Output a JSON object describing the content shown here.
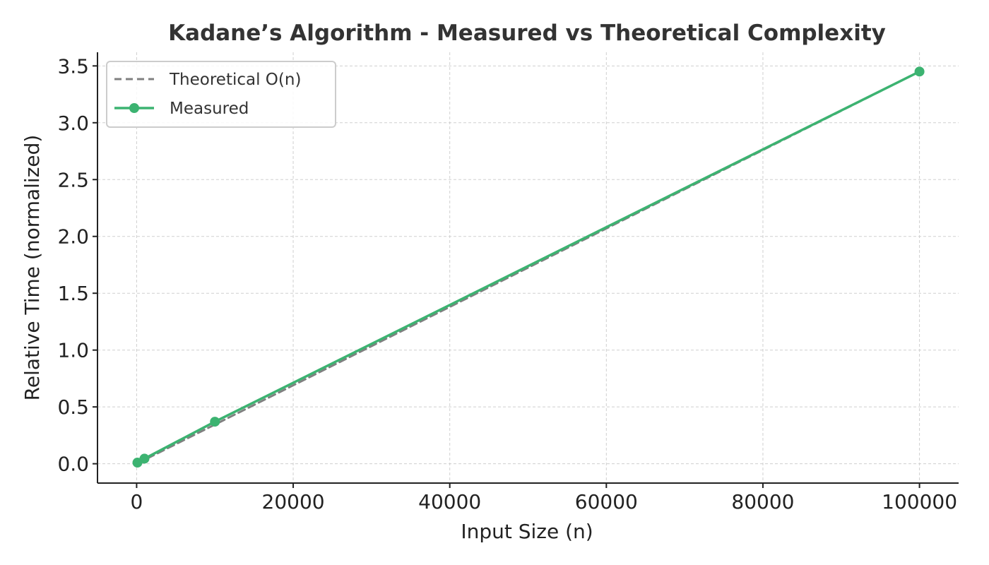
{
  "chart_data": {
    "type": "line",
    "title": "Kadane’s Algorithm - Measured vs Theoretical Complexity",
    "xlabel": "Input Size (n)",
    "ylabel": "Relative Time (normalized)",
    "xlim": [
      -5000,
      105000
    ],
    "ylim": [
      -0.17,
      3.62
    ],
    "xticks": [
      0,
      20000,
      40000,
      60000,
      80000,
      100000
    ],
    "yticks": [
      0.0,
      0.5,
      1.0,
      1.5,
      2.0,
      2.5,
      3.0,
      3.5
    ],
    "xtick_labels": [
      "0",
      "20000",
      "40000",
      "60000",
      "80000",
      "100000"
    ],
    "ytick_labels": [
      "0.0",
      "0.5",
      "1.0",
      "1.5",
      "2.0",
      "2.5",
      "3.0",
      "3.5"
    ],
    "grid": true,
    "legend_position": "top-left",
    "series": [
      {
        "name": "Theoretical O(n)",
        "style": "dashed",
        "color": "#808080",
        "markers": false,
        "x": [
          100,
          1000,
          10000,
          100000
        ],
        "y": [
          0.00345,
          0.0345,
          0.345,
          3.45
        ]
      },
      {
        "name": "Measured",
        "style": "solid",
        "color": "#3cb371",
        "markers": true,
        "x": [
          100,
          1000,
          10000,
          100000
        ],
        "y": [
          0.01,
          0.045,
          0.37,
          3.45
        ]
      }
    ]
  }
}
